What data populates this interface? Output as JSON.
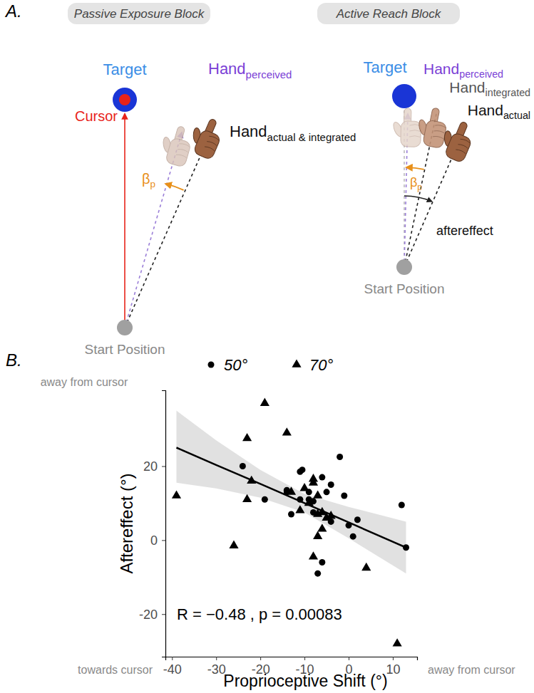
{
  "diagram": {
    "label": "A.",
    "passive": {
      "title": "Passive Exposure Block",
      "target": "Target",
      "cursor": "Cursor",
      "hand_perceived": {
        "base": "Hand",
        "sub": "perceived"
      },
      "hand_actual": {
        "base": "Hand",
        "sub": "actual & integrated"
      },
      "angle": {
        "base": "β",
        "sub": "p"
      },
      "start": "Start Position"
    },
    "active": {
      "title": "Active Reach Block",
      "target": "Target",
      "hand_perceived": {
        "base": "Hand",
        "sub": "perceived"
      },
      "hand_integrated": {
        "base": "Hand",
        "sub": "integrated"
      },
      "hand_actual": {
        "base": "Hand",
        "sub": "actual"
      },
      "angle": {
        "base": "β",
        "sub": "p"
      },
      "aftereffect": "aftereffect",
      "start": "Start Position"
    }
  },
  "chart_label": "B.",
  "chart_data": {
    "type": "scatter",
    "x_label": "Proprioceptive Shift (°)",
    "y_label": "Aftereffect (°)",
    "xlim": [
      -41.5,
      15.5
    ],
    "ylim": [
      -31.5,
      40.5
    ],
    "xticks": [
      -40,
      -30,
      -20,
      -10,
      0,
      10
    ],
    "yticks": [
      -20,
      0,
      20
    ],
    "legend": "top",
    "series": [
      {
        "name": "50°",
        "marker": "circle",
        "color": "#000000",
        "x": [
          -24,
          -19,
          -14,
          -14,
          -13,
          -11,
          -11,
          -10.5,
          -9,
          -9,
          -8,
          -8,
          -6,
          -6,
          -7,
          -5,
          -4,
          -4,
          -2,
          -1,
          0,
          1,
          2,
          12,
          13
        ],
        "values": [
          20,
          11,
          13.5,
          13,
          7,
          11,
          18.5,
          19,
          11,
          13,
          10.5,
          7.5,
          17,
          -6,
          -9,
          13,
          15,
          5,
          22.5,
          12,
          4,
          1,
          5.5,
          9.5,
          -2
        ]
      },
      {
        "name": "70°",
        "marker": "triangle",
        "color": "#000000",
        "x": [
          -39,
          -26,
          -23,
          -23,
          -22,
          -19,
          -14,
          -13,
          -11,
          -10,
          -9,
          -8,
          -8,
          -7,
          -7,
          -6,
          -6,
          -5,
          -4,
          -7,
          -8,
          4,
          11
        ],
        "values": [
          12,
          -1.5,
          27.5,
          11,
          16,
          37,
          29,
          13,
          8,
          14,
          10,
          15.5,
          16.5,
          12,
          7,
          7.5,
          3,
          6,
          6.5,
          1,
          -4.5,
          -7.5,
          -28
        ]
      }
    ],
    "fit": {
      "x": [
        -39,
        -30,
        -20,
        -10,
        0,
        13
      ],
      "values": [
        25,
        20.3,
        15.2,
        10,
        4.8,
        -2
      ],
      "lower": [
        15.5,
        14,
        11.5,
        7.5,
        0.5,
        -9
      ],
      "upper": [
        35,
        27,
        19,
        12.5,
        9,
        5
      ]
    },
    "annotations": {
      "y_top": "away from cursor",
      "x_left": "towards cursor",
      "x_right": "away from cursor",
      "stat": "R = −0.48 , p = 0.00083"
    }
  }
}
